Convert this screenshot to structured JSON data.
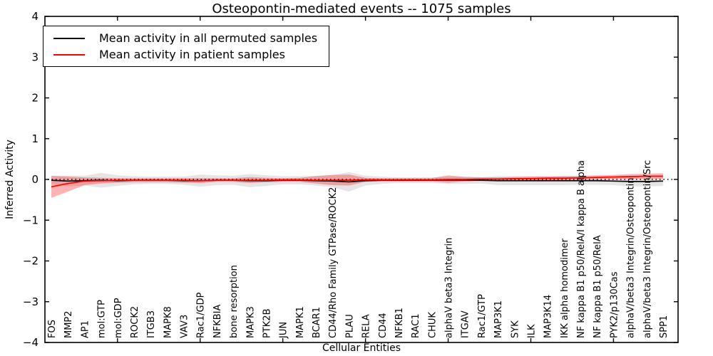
{
  "title": "Osteopontin-mediated events -- 1075 samples",
  "chart_data": {
    "type": "line",
    "title": "Osteopontin-mediated events -- 1075 samples",
    "xlabel": "Cellular Entities",
    "ylabel": "Inferred Activity",
    "ylim": [
      -4,
      4
    ],
    "yticks": [
      4,
      3,
      2,
      1,
      0,
      -1,
      -2,
      -3,
      -4
    ],
    "x_major_tick_every": 5,
    "grid": false,
    "legend_position": "upper-left",
    "background": "#ffffff",
    "categories": [
      "FOS",
      "MMP2",
      "AP1",
      "mol:GTP",
      "mol:GDP",
      "ROCK2",
      "ITGB3",
      "MAPK8",
      "VAV3",
      "Rac1/GDP",
      "NFKBIA",
      "bone resorption",
      "MAPK3",
      "PTK2B",
      "JUN",
      "MAPK1",
      "BCAR1",
      "CD44/Rho Family GTPase/ROCK2",
      "PLAU",
      "RELA",
      "CD44",
      "NFKB1",
      "RAC1",
      "CHUK",
      "alphaV beta3 Integrin",
      "ITGAV",
      "Rac1/GTP",
      "MAP3K1",
      "SYK",
      "ILK",
      "MAP3K14",
      "IKK alpha homodimer",
      "NF kappa B1 p50/RelA/I kappa B alpha",
      "NF kappa B1 p50/RelA",
      "PYK2/p130Cas",
      "alphaV/beta3 Integrin/Osteopontin",
      "alphaV/beta3 Integrin/Osteopontin/Src",
      "SPP1"
    ],
    "series": [
      {
        "key": "permuted-mean",
        "name": "Mean activity in all permuted samples",
        "color": "#000000",
        "values": [
          -0.02,
          -0.04,
          -0.03,
          -0.02,
          -0.03,
          -0.02,
          -0.02,
          -0.02,
          -0.03,
          -0.03,
          -0.02,
          -0.02,
          -0.03,
          -0.03,
          -0.02,
          -0.02,
          -0.03,
          -0.04,
          -0.06,
          -0.03,
          -0.02,
          -0.02,
          -0.02,
          -0.02,
          -0.02,
          -0.02,
          -0.02,
          -0.03,
          -0.03,
          -0.03,
          -0.03,
          -0.03,
          -0.03,
          -0.03,
          -0.04,
          -0.05,
          -0.05,
          -0.04
        ]
      },
      {
        "key": "patient-mean",
        "name": "Mean activity in patient samples",
        "color": "#ff0000",
        "values": [
          -0.18,
          -0.1,
          -0.04,
          -0.03,
          -0.02,
          -0.02,
          -0.02,
          -0.02,
          -0.02,
          -0.03,
          -0.02,
          -0.02,
          -0.02,
          -0.02,
          -0.01,
          -0.01,
          -0.02,
          -0.02,
          -0.02,
          -0.01,
          -0.01,
          -0.01,
          -0.01,
          -0.01,
          0.0,
          0.0,
          0.01,
          0.01,
          0.02,
          0.02,
          0.03,
          0.03,
          0.04,
          0.05,
          0.06,
          0.07,
          0.08,
          0.08
        ]
      }
    ],
    "bands": [
      {
        "key": "permuted-std",
        "series": "permuted-mean",
        "color": "#000000",
        "opacity": 0.1,
        "upper": [
          0.08,
          0.09,
          0.09,
          0.16,
          0.1,
          0.08,
          0.07,
          0.07,
          0.07,
          0.12,
          0.1,
          0.09,
          0.13,
          0.1,
          0.08,
          0.08,
          0.09,
          0.11,
          0.18,
          0.09,
          0.07,
          0.05,
          0.05,
          0.05,
          0.07,
          0.07,
          0.06,
          0.08,
          0.08,
          0.08,
          0.08,
          0.08,
          0.07,
          0.07,
          0.06,
          0.07,
          0.07,
          0.08
        ],
        "lower": [
          -0.12,
          -0.17,
          -0.15,
          -0.2,
          -0.16,
          -0.12,
          -0.11,
          -0.11,
          -0.13,
          -0.18,
          -0.14,
          -0.13,
          -0.19,
          -0.16,
          -0.12,
          -0.12,
          -0.15,
          -0.19,
          -0.3,
          -0.15,
          -0.11,
          -0.09,
          -0.09,
          -0.09,
          -0.11,
          -0.11,
          -0.1,
          -0.14,
          -0.14,
          -0.14,
          -0.14,
          -0.14,
          -0.13,
          -0.13,
          -0.14,
          -0.17,
          -0.17,
          -0.16
        ]
      },
      {
        "key": "patient-std",
        "series": "patient-mean",
        "color": "#ff0000",
        "opacity": 0.3,
        "upper": [
          0.09,
          0.07,
          0.05,
          0.04,
          0.03,
          0.03,
          0.03,
          0.03,
          0.03,
          0.03,
          0.03,
          0.03,
          0.06,
          0.04,
          0.03,
          0.04,
          0.08,
          0.11,
          0.12,
          0.04,
          0.03,
          0.03,
          0.03,
          0.03,
          0.1,
          0.06,
          0.05,
          0.05,
          0.06,
          0.07,
          0.07,
          0.08,
          0.09,
          0.1,
          0.11,
          0.13,
          0.14,
          0.15
        ],
        "lower": [
          -0.45,
          -0.3,
          -0.14,
          -0.1,
          -0.08,
          -0.07,
          -0.07,
          -0.07,
          -0.08,
          -0.09,
          -0.06,
          -0.06,
          -0.09,
          -0.07,
          -0.06,
          -0.06,
          -0.1,
          -0.14,
          -0.15,
          -0.06,
          -0.05,
          -0.05,
          -0.05,
          -0.05,
          -0.08,
          -0.05,
          -0.04,
          -0.03,
          -0.02,
          -0.02,
          -0.02,
          -0.01,
          0.0,
          0.0,
          0.01,
          0.02,
          0.02,
          0.02
        ]
      }
    ],
    "zero_line": {
      "value": 0,
      "style": "dotted",
      "color": "#000000"
    }
  }
}
